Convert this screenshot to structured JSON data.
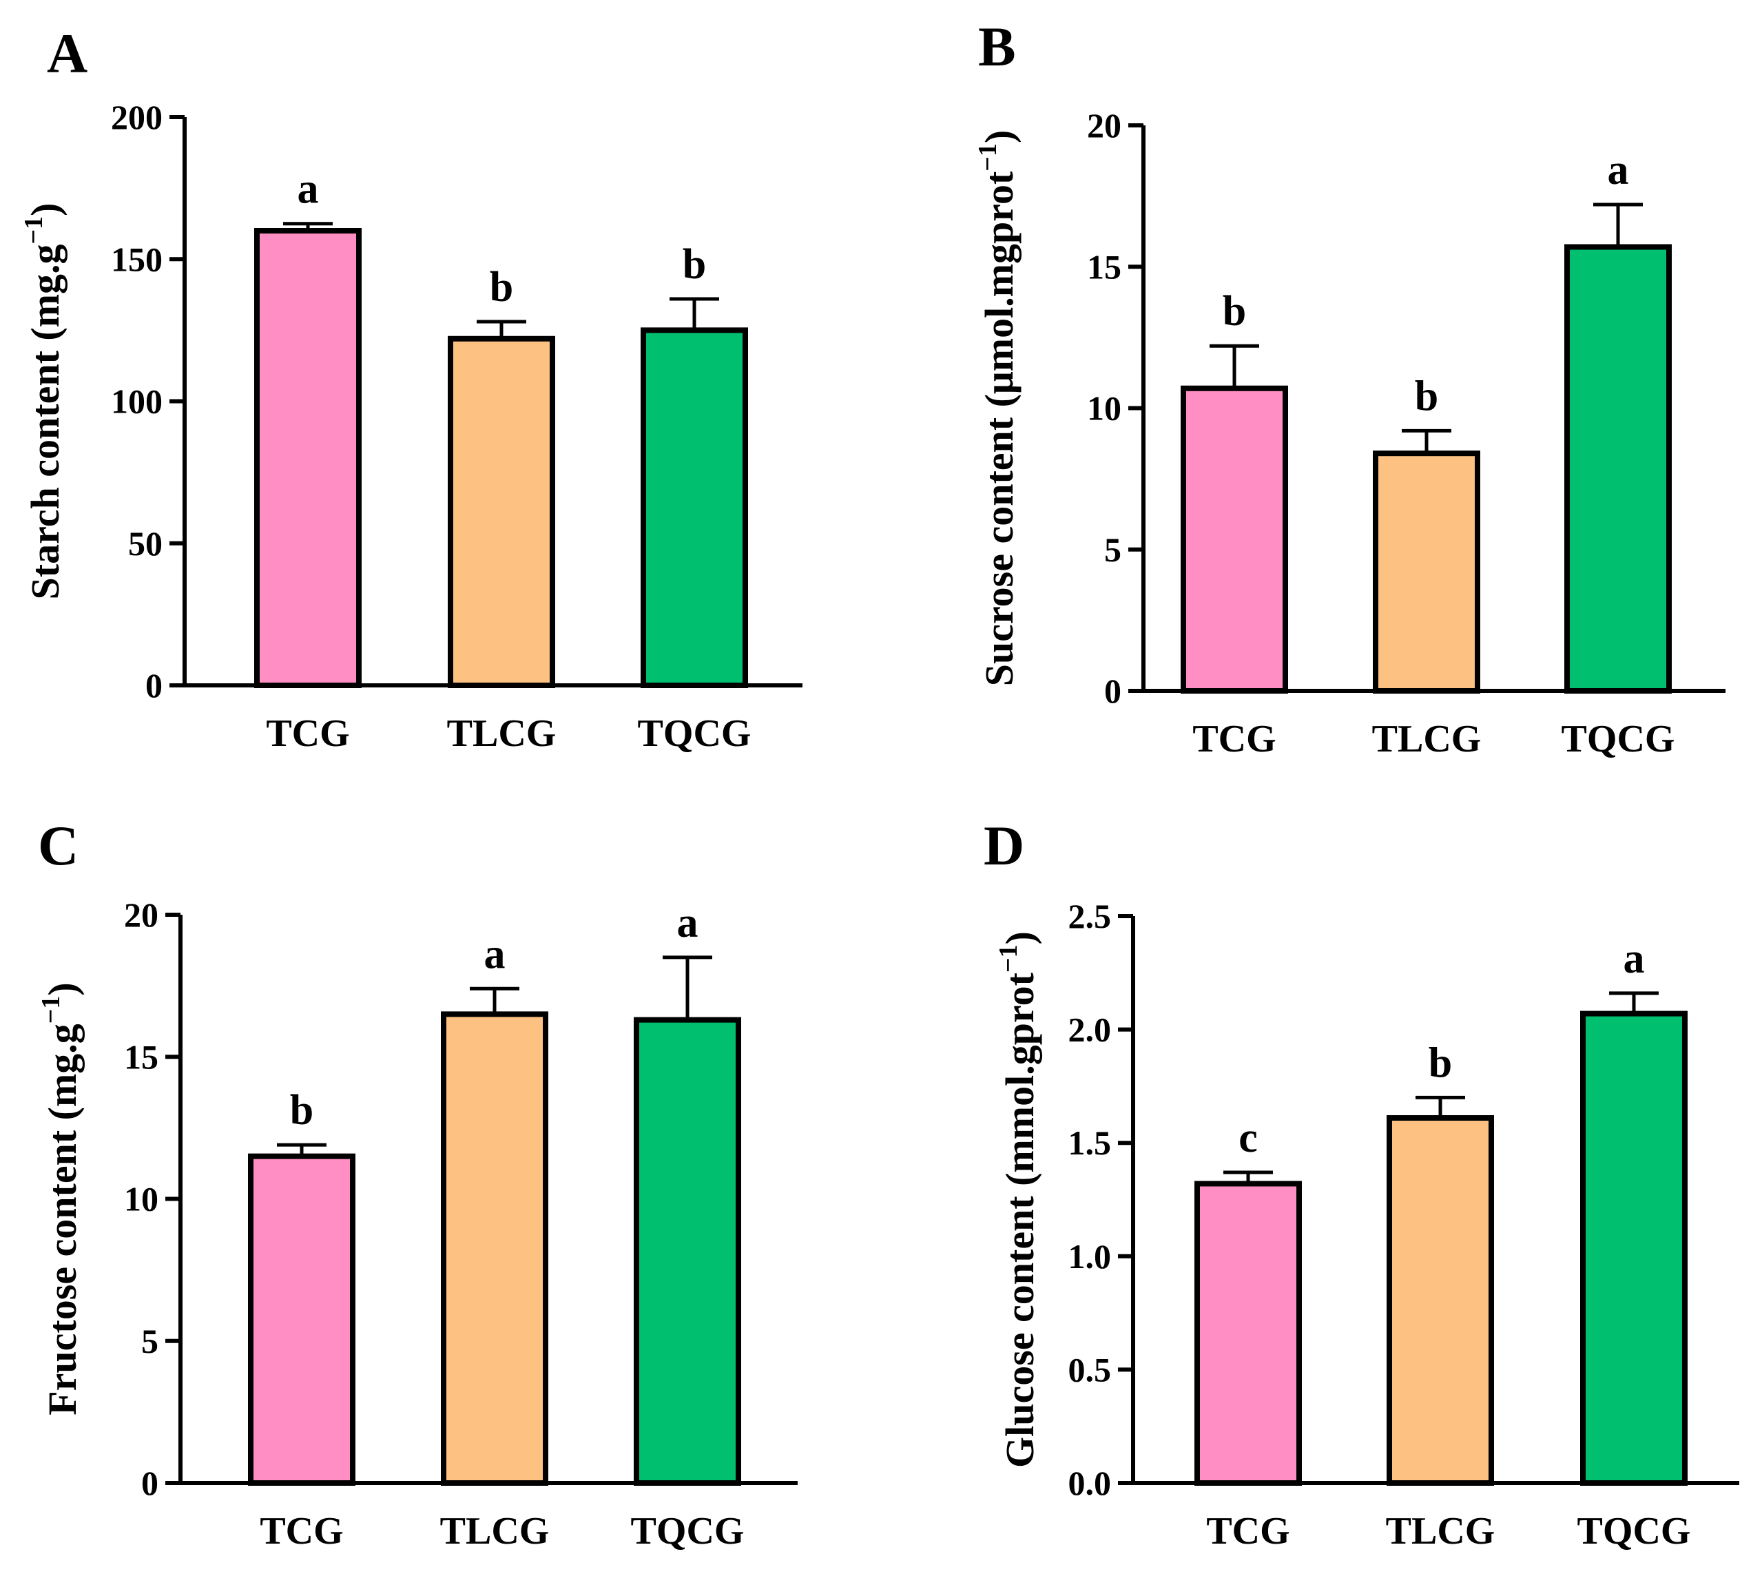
{
  "chart_data": [
    {
      "panel": "A",
      "type": "bar",
      "categories": [
        "TCG",
        "TLCG",
        "TQCG"
      ],
      "values": [
        160,
        122,
        125
      ],
      "errors": [
        2.5,
        6,
        11
      ],
      "significance": [
        "a",
        "b",
        "b"
      ],
      "colors": [
        "#ff8ec4",
        "#fdc282",
        "#00bf6f"
      ],
      "ylabel": "Starch content (mg.g",
      "ylabel_sup": "−1",
      "ylabel_close": ")",
      "ylim": [
        0,
        200
      ],
      "yticks": [
        0,
        50,
        100,
        150,
        200
      ],
      "ytick_labels": [
        "0",
        "50",
        "100",
        "150",
        "200"
      ]
    },
    {
      "panel": "B",
      "type": "bar",
      "categories": [
        "TCG",
        "TLCG",
        "TQCG"
      ],
      "values": [
        10.7,
        8.4,
        15.7
      ],
      "errors": [
        1.5,
        0.8,
        1.5
      ],
      "significance": [
        "b",
        "b",
        "a"
      ],
      "colors": [
        "#ff8ec4",
        "#fdc282",
        "#00bf6f"
      ],
      "ylabel": "Sucrose content (μmol.mgprot",
      "ylabel_sup": "−1",
      "ylabel_close": ")",
      "ylim": [
        0,
        20
      ],
      "yticks": [
        0,
        5,
        10,
        15,
        20
      ],
      "ytick_labels": [
        "0",
        "5",
        "10",
        "15",
        "20"
      ]
    },
    {
      "panel": "C",
      "type": "bar",
      "categories": [
        "TCG",
        "TLCG",
        "TQCG"
      ],
      "values": [
        11.5,
        16.5,
        16.3
      ],
      "errors": [
        0.4,
        0.9,
        2.2
      ],
      "significance": [
        "b",
        "a",
        "a"
      ],
      "colors": [
        "#ff8ec4",
        "#fdc282",
        "#00bf6f"
      ],
      "ylabel": "Fructose content (mg.g",
      "ylabel_sup": "−1",
      "ylabel_close": ")",
      "ylim": [
        0,
        20
      ],
      "yticks": [
        0,
        5,
        10,
        15,
        20
      ],
      "ytick_labels": [
        "0",
        "5",
        "10",
        "15",
        "20"
      ]
    },
    {
      "panel": "D",
      "type": "bar",
      "categories": [
        "TCG",
        "TLCG",
        "TQCG"
      ],
      "values": [
        1.32,
        1.61,
        2.07
      ],
      "errors": [
        0.05,
        0.09,
        0.09
      ],
      "significance": [
        "c",
        "b",
        "a"
      ],
      "colors": [
        "#ff8ec4",
        "#fdc282",
        "#00bf6f"
      ],
      "ylabel": "Glucose content (mmol.gprot",
      "ylabel_sup": "−1",
      "ylabel_close": ")",
      "ylim": [
        0,
        2.5
      ],
      "yticks": [
        0,
        0.5,
        1.0,
        1.5,
        2.0,
        2.5
      ],
      "ytick_labels": [
        "0.0",
        "0.5",
        "1.0",
        "1.5",
        "2.0",
        "2.5"
      ]
    }
  ]
}
